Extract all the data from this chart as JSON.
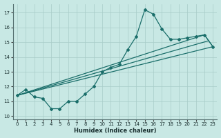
{
  "xlabel": "Humidex (Indice chaleur)",
  "xlim": [
    -0.5,
    23.5
  ],
  "ylim": [
    9.8,
    17.6
  ],
  "yticks": [
    10,
    11,
    12,
    13,
    14,
    15,
    16,
    17
  ],
  "xticks": [
    0,
    1,
    2,
    3,
    4,
    5,
    6,
    7,
    8,
    9,
    10,
    11,
    12,
    13,
    14,
    15,
    16,
    17,
    18,
    19,
    20,
    21,
    22,
    23
  ],
  "bg_color": "#c8e8e4",
  "grid_color": "#a8ccc8",
  "line_color": "#1a6e6a",
  "hourly_x": [
    0,
    1,
    2,
    3,
    4,
    5,
    6,
    7,
    8,
    9,
    10,
    11,
    12,
    13,
    14,
    15,
    16,
    17,
    18,
    19,
    20,
    21,
    22,
    23
  ],
  "hourly_y": [
    11.4,
    11.8,
    11.3,
    11.2,
    10.5,
    10.5,
    11.0,
    11.0,
    11.5,
    12.0,
    13.0,
    13.3,
    13.5,
    14.5,
    15.4,
    17.2,
    16.9,
    15.9,
    15.2,
    15.2,
    15.3,
    15.4,
    15.5,
    14.7
  ],
  "upper_line_x": [
    0,
    22
  ],
  "upper_line_y": [
    11.4,
    15.5
  ],
  "lower_line_x": [
    0,
    23
  ],
  "lower_line_y": [
    11.4,
    14.7
  ],
  "mid_line_x": [
    0,
    22.5
  ],
  "mid_line_y": [
    11.4,
    15.1
  ]
}
